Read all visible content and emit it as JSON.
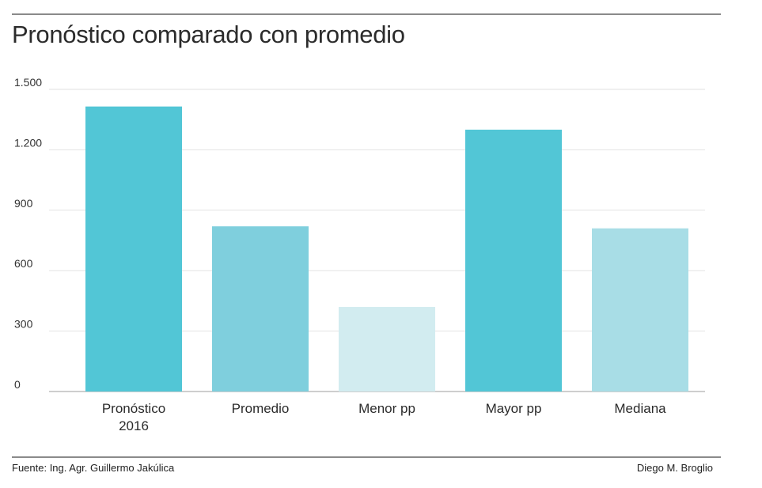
{
  "header": {
    "title": "Pronóstico comparado con promedio"
  },
  "chart_data": {
    "type": "bar",
    "title": "Pronóstico comparado con promedio",
    "categories": [
      [
        "Pronóstico",
        "2016"
      ],
      [
        "Promedio"
      ],
      [
        "Menor pp"
      ],
      [
        "Mayor pp"
      ],
      [
        "Mediana"
      ]
    ],
    "values": [
      1415,
      820,
      420,
      1300,
      810
    ],
    "colors": [
      "#52c6d6",
      "#7fcfdd",
      "#d2ecf0",
      "#52c6d6",
      "#a8dde6"
    ],
    "ylim": [
      0,
      1500
    ],
    "yticks": [
      0,
      300,
      600,
      900,
      1200,
      1500
    ],
    "ytick_labels": [
      "0",
      "300",
      "600",
      "900",
      "1.200",
      "1.500"
    ],
    "grid": true,
    "xlabel": "",
    "ylabel": ""
  },
  "footer": {
    "source": "Fuente: Ing. Agr. Guillermo Jakúlica",
    "author": "Diego M. Broglio"
  }
}
